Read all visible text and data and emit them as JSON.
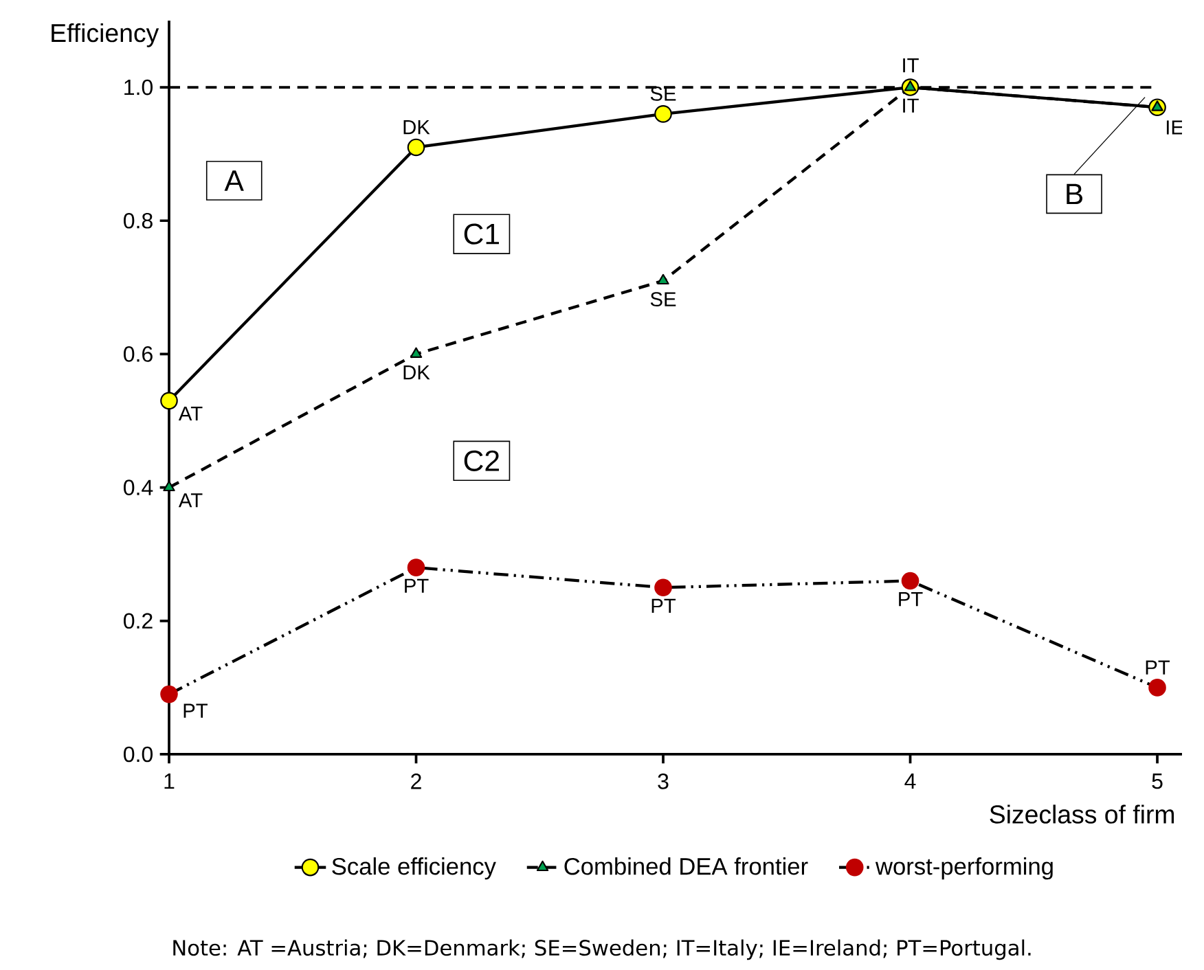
{
  "chart_data": {
    "type": "line",
    "xlabel": "Sizeclass of firm",
    "ylabel": "Efficiency",
    "x": [
      1,
      2,
      3,
      4,
      5
    ],
    "series": [
      {
        "name": "Scale efficiency",
        "color": "#ffff00",
        "values": [
          0.53,
          0.91,
          0.96,
          1.0,
          0.97
        ],
        "marker": "circle",
        "line_style": "solid"
      },
      {
        "name": "Combined DEA frontier",
        "color": "#00a050",
        "values": [
          0.4,
          0.6,
          0.71,
          1.0,
          0.97
        ],
        "marker": "triangle",
        "line_style": "dashed"
      },
      {
        "name": "worst-performing",
        "color": "#c00000",
        "values": [
          0.09,
          0.28,
          0.25,
          0.26,
          0.1
        ],
        "marker": "circle",
        "line_style": "dashdotdot"
      }
    ],
    "xlim": [
      1,
      5.1
    ],
    "ylim": [
      0,
      1.1
    ],
    "xticks": [
      1,
      2,
      3,
      4,
      5
    ],
    "yticks": [
      {
        "value": 0,
        "label": "0.0"
      },
      {
        "value": 0.2,
        "label": "0.2"
      },
      {
        "value": 0.4,
        "label": "0.4"
      },
      {
        "value": 0.6,
        "label": "0.6"
      },
      {
        "value": 0.8,
        "label": "0.8"
      },
      {
        "value": 1.0,
        "label": "1.0"
      }
    ],
    "ref_lines": [
      {
        "axis": "y",
        "value": 1.0,
        "line_style": "dashed",
        "color": "#000000"
      }
    ],
    "legend": "bottom",
    "annotations": [
      "A",
      "B",
      "C1",
      "C2",
      {
        "text": "AT",
        "x": 1,
        "y": 0.53
      },
      {
        "text": "DK",
        "x": 2,
        "y": 0.91
      },
      {
        "text": "SE",
        "x": 3,
        "y": 0.96
      },
      {
        "text": "IT",
        "x": 4,
        "y": 1.0
      },
      {
        "text": "AT",
        "x": 1,
        "y": 0.4
      },
      {
        "text": "DK",
        "x": 2,
        "y": 0.6
      },
      {
        "text": "SE",
        "x": 3,
        "y": 0.71
      },
      {
        "text": "IT",
        "x": 4,
        "y": 1.0
      },
      {
        "text": "IE",
        "x": 5,
        "y": 0.97
      },
      {
        "text": "PT",
        "x": 1,
        "y": 0.09
      },
      {
        "text": "PT",
        "x": 2,
        "y": 0.28
      },
      {
        "text": "PT",
        "x": 3,
        "y": 0.25
      },
      {
        "text": "PT",
        "x": 4,
        "y": 0.26
      },
      {
        "text": "PT",
        "x": 5,
        "y": 0.1
      },
      "Note: AT =Austria; DK=Denmark; SE=Sweden; IT=Italy; IE=Ireland; PT=Portugal."
    ]
  }
}
